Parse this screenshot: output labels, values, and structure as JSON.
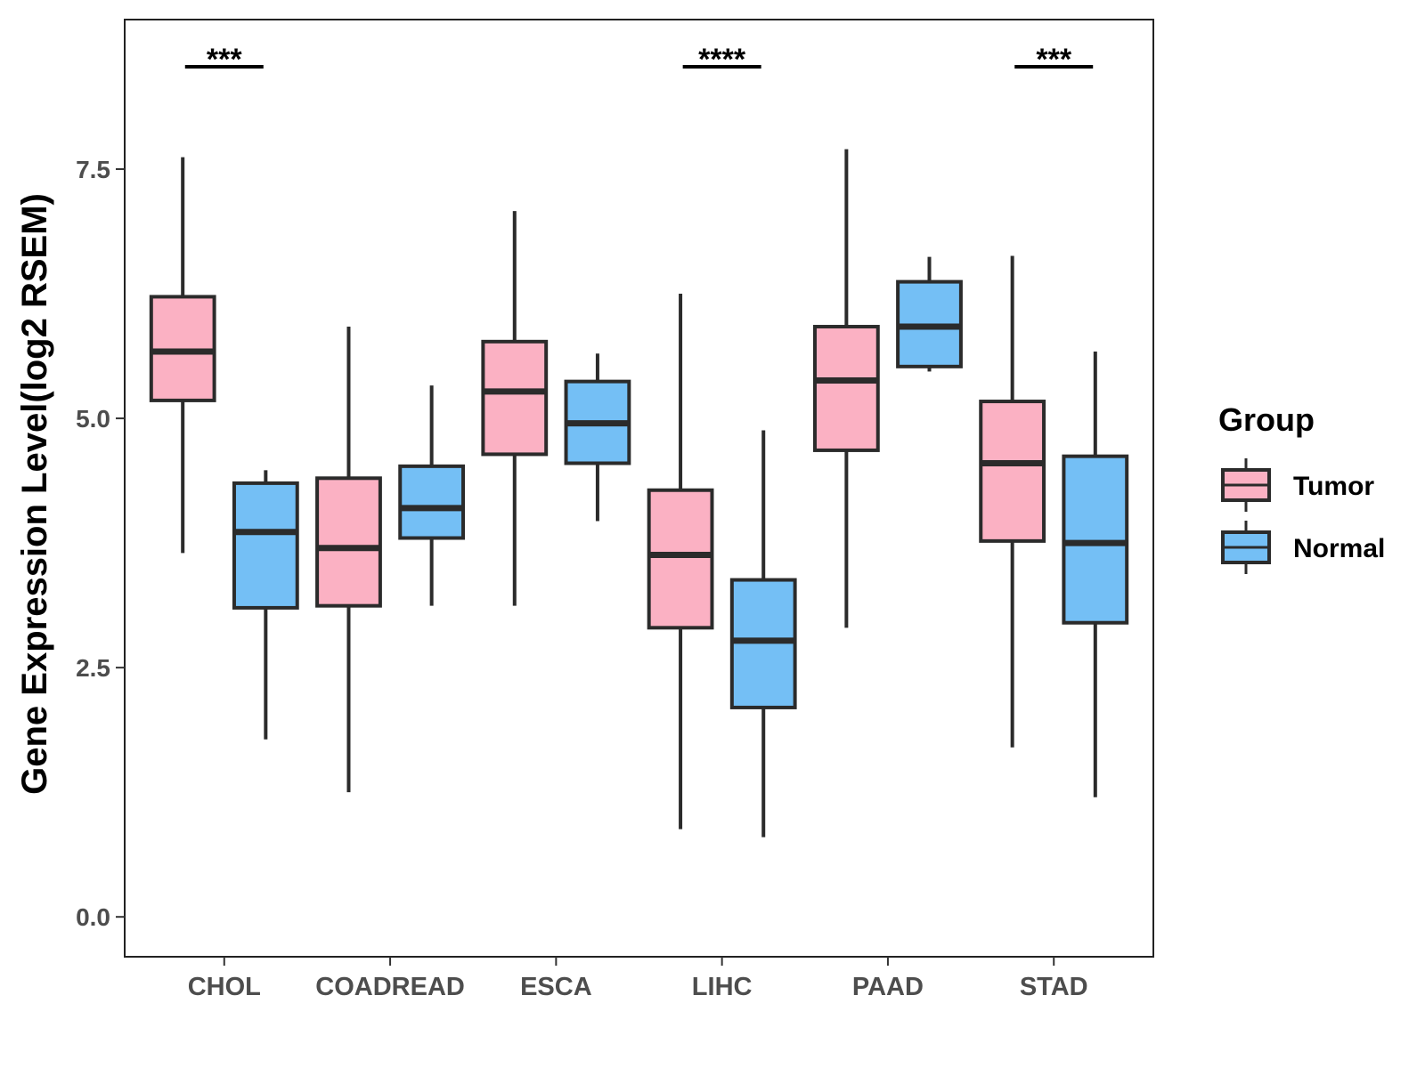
{
  "chart_data": {
    "type": "boxplot",
    "title": "",
    "xlabel": "",
    "ylabel": "Gene Expression Level(log2 RSEM)",
    "ylim": [
      -0.4,
      9.0
    ],
    "yticks": [
      0.0,
      2.5,
      5.0,
      7.5
    ],
    "ytick_labels": [
      "0.0",
      "2.5",
      "5.0",
      "7.5"
    ],
    "grid": false,
    "categories": [
      "CHOL",
      "COADREAD",
      "ESCA",
      "LIHC",
      "PAAD",
      "STAD"
    ],
    "legend": {
      "title": "Group",
      "position": "right",
      "entries": [
        {
          "name": "Tumor",
          "color": "#FBB1C3"
        },
        {
          "name": "Normal",
          "color": "#74BFF5"
        }
      ]
    },
    "series": [
      {
        "name": "Tumor",
        "color": "#FBB1C3",
        "boxes": [
          {
            "min": 3.65,
            "q1": 5.18,
            "median": 5.67,
            "q3": 6.22,
            "max": 7.62
          },
          {
            "min": 1.25,
            "q1": 3.12,
            "median": 3.7,
            "q3": 4.4,
            "max": 5.92
          },
          {
            "min": 3.12,
            "q1": 4.64,
            "median": 5.27,
            "q3": 5.77,
            "max": 7.08
          },
          {
            "min": 0.88,
            "q1": 2.9,
            "median": 3.63,
            "q3": 4.28,
            "max": 6.25
          },
          {
            "min": 2.9,
            "q1": 4.68,
            "median": 5.38,
            "q3": 5.92,
            "max": 7.7
          },
          {
            "min": 1.7,
            "q1": 3.77,
            "median": 4.55,
            "q3": 5.17,
            "max": 6.63
          }
        ]
      },
      {
        "name": "Normal",
        "color": "#74BFF5",
        "boxes": [
          {
            "min": 1.78,
            "q1": 3.1,
            "median": 3.86,
            "q3": 4.35,
            "max": 4.48
          },
          {
            "min": 3.12,
            "q1": 3.8,
            "median": 4.1,
            "q3": 4.52,
            "max": 5.33
          },
          {
            "min": 3.97,
            "q1": 4.55,
            "median": 4.95,
            "q3": 5.37,
            "max": 5.65
          },
          {
            "min": 0.8,
            "q1": 2.1,
            "median": 2.77,
            "q3": 3.38,
            "max": 4.88
          },
          {
            "min": 5.47,
            "q1": 5.52,
            "median": 5.92,
            "q3": 6.37,
            "max": 6.62
          },
          {
            "min": 1.2,
            "q1": 2.95,
            "median": 3.75,
            "q3": 4.62,
            "max": 5.67
          }
        ]
      }
    ],
    "significance": [
      {
        "category": "CHOL",
        "label": "***"
      },
      {
        "category": "LIHC",
        "label": "****"
      },
      {
        "category": "STAD",
        "label": "***"
      }
    ]
  }
}
